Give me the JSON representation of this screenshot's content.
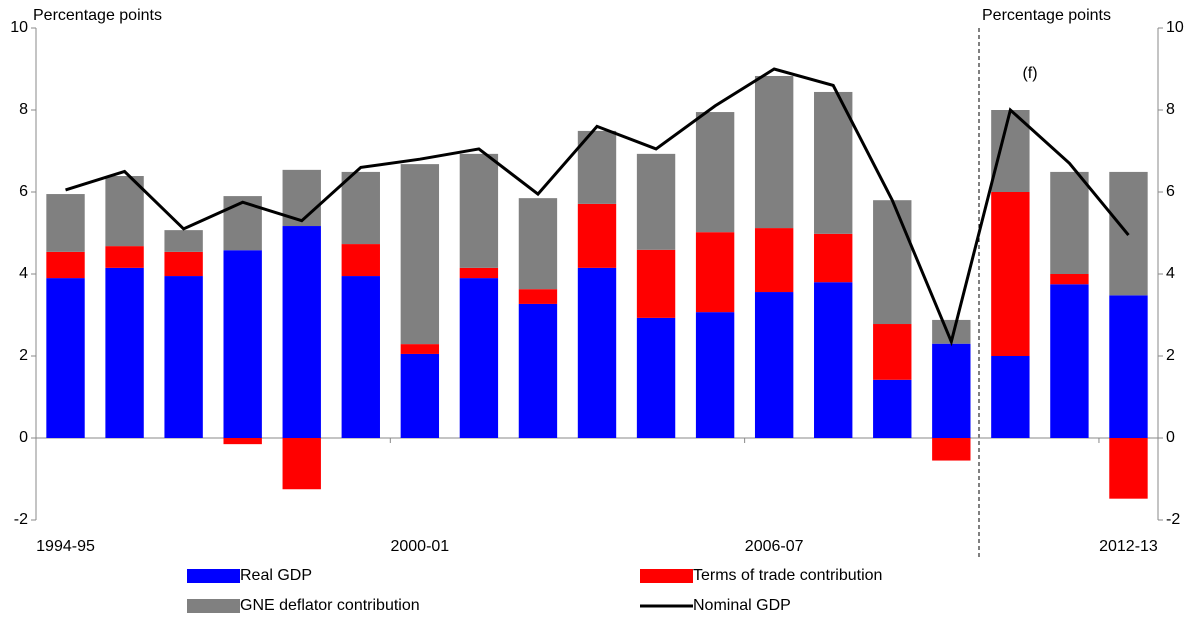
{
  "chart_data": {
    "type": "bar",
    "y_axis_label": "Percentage points",
    "y2_axis_label": "Percentage points",
    "annotation": "(f)",
    "categories": [
      "1994-95",
      null,
      null,
      null,
      null,
      null,
      "2000-01",
      null,
      null,
      null,
      null,
      null,
      "2006-07",
      null,
      null,
      null,
      null,
      null,
      "2012-13"
    ],
    "series": [
      {
        "name": "Real GDP",
        "color": "#0000ff",
        "type": "bar",
        "values": [
          3.9,
          4.15,
          3.95,
          4.58,
          5.17,
          3.95,
          2.05,
          3.9,
          3.27,
          4.15,
          2.93,
          3.07,
          3.56,
          3.8,
          1.42,
          2.3,
          2.0,
          3.75,
          3.48
        ]
      },
      {
        "name": "Terms of trade contribution",
        "color": "#ff0000",
        "type": "bar",
        "values": [
          0.64,
          0.53,
          0.59,
          -0.15,
          -1.25,
          0.78,
          0.24,
          0.25,
          0.36,
          1.56,
          1.66,
          1.95,
          1.56,
          1.18,
          1.36,
          -0.55,
          4.0,
          0.25,
          -1.48
        ]
      },
      {
        "name": "GNE deflator contribution",
        "color": "#808080",
        "type": "bar",
        "values": [
          1.41,
          1.71,
          0.53,
          1.32,
          1.37,
          1.76,
          4.39,
          2.78,
          2.22,
          1.78,
          2.34,
          2.93,
          3.71,
          3.46,
          3.02,
          0.58,
          2.0,
          2.49,
          3.01
        ]
      },
      {
        "name": "Nominal GDP",
        "color": "#000000",
        "type": "line",
        "values": [
          6.05,
          6.5,
          5.1,
          5.75,
          5.3,
          6.6,
          6.8,
          7.05,
          5.95,
          7.6,
          7.05,
          8.1,
          9.0,
          8.6,
          5.8,
          2.35,
          8.0,
          6.7,
          4.95
        ]
      }
    ],
    "ylim": [
      -2,
      10
    ],
    "yticks": [
      -2,
      0,
      2,
      4,
      6,
      8,
      10
    ],
    "y2lim": [
      -2,
      10
    ],
    "y2ticks": [
      -2,
      0,
      2,
      4,
      6,
      8,
      10
    ]
  }
}
